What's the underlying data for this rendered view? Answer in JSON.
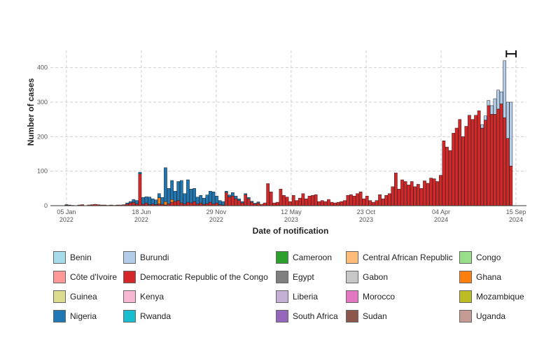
{
  "chart_data": {
    "type": "bar",
    "stacked": true,
    "xlabel": "Date of notification",
    "ylabel": "Number of cases",
    "ylim": [
      0,
      450
    ],
    "yticks": [
      0,
      100,
      200,
      300,
      400
    ],
    "x_tick_labels": [
      {
        "date": "2022-01-05",
        "line1": "05 Jan",
        "line2": "2022"
      },
      {
        "date": "2022-06-18",
        "line1": "18 Jun",
        "line2": "2022"
      },
      {
        "date": "2022-11-29",
        "line1": "29 Nov",
        "line2": "2022"
      },
      {
        "date": "2023-05-12",
        "line1": "12 May",
        "line2": "2023"
      },
      {
        "date": "2023-10-23",
        "line1": "23 Oct",
        "line2": "2023"
      },
      {
        "date": "2024-04-04",
        "line1": "04 Apr",
        "line2": "2024"
      },
      {
        "date": "2024-09-15",
        "line1": "15 Sep",
        "line2": "2024"
      }
    ],
    "xlim": [
      "2021-12-01",
      "2024-10-08"
    ],
    "grid": true,
    "reporting_delay_marker": {
      "start": "2024-08-25",
      "end": "2024-09-15",
      "y": 440
    },
    "legend_position": "bottom",
    "series": [
      {
        "name": "Benin",
        "color": "#a6dce9"
      },
      {
        "name": "Burundi",
        "color": "#b3cce8"
      },
      {
        "name": "Cameroon",
        "color": "#2ca02c"
      },
      {
        "name": "Central African Republic",
        "color": "#ffbb78"
      },
      {
        "name": "Congo",
        "color": "#98df8a"
      },
      {
        "name": "Côte d'Ivoire",
        "color": "#ff9896"
      },
      {
        "name": "Democratic Republic of the Congo",
        "color": "#d62728"
      },
      {
        "name": "Egypt",
        "color": "#7f7f7f"
      },
      {
        "name": "Gabon",
        "color": "#c7c7c7"
      },
      {
        "name": "Ghana",
        "color": "#ff7f0e"
      },
      {
        "name": "Guinea",
        "color": "#dbdb8d"
      },
      {
        "name": "Kenya",
        "color": "#f7b6d2"
      },
      {
        "name": "Liberia",
        "color": "#c5b0d5"
      },
      {
        "name": "Morocco",
        "color": "#e377c2"
      },
      {
        "name": "Mozambique",
        "color": "#bcbd22"
      },
      {
        "name": "Nigeria",
        "color": "#1f77b4"
      },
      {
        "name": "Rwanda",
        "color": "#17becf"
      },
      {
        "name": "South Africa",
        "color": "#9467bd"
      },
      {
        "name": "Sudan",
        "color": "#8c564b"
      },
      {
        "name": "Uganda",
        "color": "#c49c94"
      }
    ],
    "bars": [
      {
        "date": "2022-01-05",
        "Democratic Republic of the Congo": 2,
        "Nigeria": 1
      },
      {
        "date": "2022-01-12",
        "Democratic Republic of the Congo": 2
      },
      {
        "date": "2022-01-19",
        "Democratic Republic of the Congo": 1
      },
      {
        "date": "2022-02-02",
        "Democratic Republic of the Congo": 2
      },
      {
        "date": "2022-02-09",
        "Democratic Republic of the Congo": 3
      },
      {
        "date": "2022-02-23",
        "Democratic Republic of the Congo": 2
      },
      {
        "date": "2022-03-02",
        "Democratic Republic of the Congo": 3
      },
      {
        "date": "2022-03-09",
        "Democratic Republic of the Congo": 4
      },
      {
        "date": "2022-03-16",
        "Democratic Republic of the Congo": 3
      },
      {
        "date": "2022-03-23",
        "Democratic Republic of the Congo": 2
      },
      {
        "date": "2022-03-30",
        "Democratic Republic of the Congo": 2
      },
      {
        "date": "2022-04-06",
        "Democratic Republic of the Congo": 1
      },
      {
        "date": "2022-04-13",
        "Democratic Republic of the Congo": 2
      },
      {
        "date": "2022-04-20",
        "Democratic Republic of the Congo": 1
      },
      {
        "date": "2022-04-27",
        "Democratic Republic of the Congo": 2
      },
      {
        "date": "2022-05-04",
        "Democratic Republic of the Congo": 2
      },
      {
        "date": "2022-05-11",
        "Democratic Republic of the Congo": 3
      },
      {
        "date": "2022-05-18",
        "Democratic Republic of the Congo": 5,
        "Nigeria": 3
      },
      {
        "date": "2022-05-25",
        "Democratic Republic of the Congo": 8,
        "Nigeria": 4
      },
      {
        "date": "2022-06-01",
        "Democratic Republic of the Congo": 10,
        "Nigeria": 8
      },
      {
        "date": "2022-06-08",
        "Democratic Republic of the Congo": 5,
        "Nigeria": 10
      },
      {
        "date": "2022-06-15",
        "Democratic Republic of the Congo": 92,
        "Nigeria": 5
      },
      {
        "date": "2022-06-22",
        "Democratic Republic of the Congo": 4,
        "Nigeria": 20
      },
      {
        "date": "2022-06-29",
        "Democratic Republic of the Congo": 8,
        "Nigeria": 18
      },
      {
        "date": "2022-07-06",
        "Democratic Republic of the Congo": 3,
        "Nigeria": 22
      },
      {
        "date": "2022-07-13",
        "Democratic Republic of the Congo": 5,
        "Nigeria": 15
      },
      {
        "date": "2022-07-20",
        "Democratic Republic of the Congo": 3,
        "Nigeria": 14
      },
      {
        "date": "2022-07-27",
        "Democratic Republic of the Congo": 5,
        "Nigeria": 12,
        "Ghana": 18
      },
      {
        "date": "2022-08-03",
        "Democratic Republic of the Congo": 4,
        "Nigeria": 20
      },
      {
        "date": "2022-08-10",
        "Democratic Republic of the Congo": 2,
        "Nigeria": 98,
        "Ghana": 10
      },
      {
        "date": "2022-08-17",
        "Democratic Republic of the Congo": 5,
        "Nigeria": 45
      },
      {
        "date": "2022-08-24",
        "Democratic Republic of the Congo": 10,
        "Nigeria": 55,
        "Ghana": 8
      },
      {
        "date": "2022-08-31",
        "Democratic Republic of the Congo": 12,
        "Nigeria": 30
      },
      {
        "date": "2022-09-07",
        "Democratic Republic of the Congo": 15,
        "Nigeria": 55
      },
      {
        "date": "2022-09-14",
        "Democratic Republic of the Congo": 8,
        "Nigeria": 65
      },
      {
        "date": "2022-09-21",
        "Democratic Republic of the Congo": 5,
        "Nigeria": 30
      },
      {
        "date": "2022-09-28",
        "Democratic Republic of the Congo": 10,
        "Nigeria": 65
      },
      {
        "date": "2022-10-05",
        "Democratic Republic of the Congo": 8,
        "Nigeria": 40
      },
      {
        "date": "2022-10-12",
        "Democratic Republic of the Congo": 12,
        "Nigeria": 38
      },
      {
        "date": "2022-10-19",
        "Democratic Republic of the Congo": 5,
        "Nigeria": 20
      },
      {
        "date": "2022-10-26",
        "Democratic Republic of the Congo": 8,
        "Nigeria": 22
      },
      {
        "date": "2022-11-02",
        "Democratic Republic of the Congo": 4,
        "Nigeria": 18
      },
      {
        "date": "2022-11-09",
        "Democratic Republic of the Congo": 6,
        "Nigeria": 25
      },
      {
        "date": "2022-11-16",
        "Democratic Republic of the Congo": 10,
        "Nigeria": 32
      },
      {
        "date": "2022-11-23",
        "Democratic Republic of the Congo": 5,
        "Nigeria": 35
      },
      {
        "date": "2022-11-30",
        "Democratic Republic of the Congo": 8,
        "Nigeria": 20
      },
      {
        "date": "2022-12-07",
        "Democratic Republic of the Congo": 3,
        "Nigeria": 12
      },
      {
        "date": "2022-12-14",
        "Democratic Republic of the Congo": 2,
        "Nigeria": 10
      },
      {
        "date": "2022-12-21",
        "Democratic Republic of the Congo": 38,
        "Nigeria": 4
      },
      {
        "date": "2022-12-28",
        "Democratic Republic of the Congo": 25,
        "Nigeria": 6
      },
      {
        "date": "2023-01-04",
        "Democratic Republic of the Congo": 28,
        "Nigeria": 10
      },
      {
        "date": "2023-01-11",
        "Democratic Republic of the Congo": 20,
        "Nigeria": 8
      },
      {
        "date": "2023-01-18",
        "Democratic Republic of the Congo": 15,
        "Nigeria": 5
      },
      {
        "date": "2023-01-25",
        "Democratic Republic of the Congo": 8,
        "Nigeria": 4
      },
      {
        "date": "2023-02-01",
        "Democratic Republic of the Congo": 32,
        "Nigeria": 3
      },
      {
        "date": "2023-02-08",
        "Democratic Republic of the Congo": 20,
        "Nigeria": 4
      },
      {
        "date": "2023-02-15",
        "Democratic Republic of the Congo": 10,
        "Nigeria": 3
      },
      {
        "date": "2023-02-22",
        "Democratic Republic of the Congo": 5,
        "Nigeria": 2
      },
      {
        "date": "2023-03-01",
        "Democratic Republic of the Congo": 8,
        "Nigeria": 3
      },
      {
        "date": "2023-03-08",
        "Democratic Republic of the Congo": 4
      },
      {
        "date": "2023-03-15",
        "Democratic Republic of the Congo": 8
      },
      {
        "date": "2023-03-22",
        "Democratic Republic of the Congo": 64
      },
      {
        "date": "2023-03-29",
        "Democratic Republic of the Congo": 40
      },
      {
        "date": "2023-04-05",
        "Democratic Republic of the Congo": 8
      },
      {
        "date": "2023-04-12",
        "Democratic Republic of the Congo": 10
      },
      {
        "date": "2023-04-19",
        "Democratic Republic of the Congo": 48
      },
      {
        "date": "2023-04-26",
        "Democratic Republic of the Congo": 30
      },
      {
        "date": "2023-05-03",
        "Democratic Republic of the Congo": 25
      },
      {
        "date": "2023-05-10",
        "Democratic Republic of the Congo": 12
      },
      {
        "date": "2023-05-17",
        "Democratic Republic of the Congo": 30
      },
      {
        "date": "2023-05-24",
        "Democratic Republic of the Congo": 15
      },
      {
        "date": "2023-05-31",
        "Democratic Republic of the Congo": 22
      },
      {
        "date": "2023-06-07",
        "Democratic Republic of the Congo": 35
      },
      {
        "date": "2023-06-14",
        "Democratic Republic of the Congo": 20
      },
      {
        "date": "2023-06-21",
        "Democratic Republic of the Congo": 28
      },
      {
        "date": "2023-06-28",
        "Democratic Republic of the Congo": 30
      },
      {
        "date": "2023-07-05",
        "Democratic Republic of the Congo": 32
      },
      {
        "date": "2023-07-12",
        "Democratic Republic of the Congo": 12
      },
      {
        "date": "2023-07-19",
        "Democratic Republic of the Congo": 15
      },
      {
        "date": "2023-07-26",
        "Democratic Republic of the Congo": 12
      },
      {
        "date": "2023-08-02",
        "Democratic Republic of the Congo": 18
      },
      {
        "date": "2023-08-09",
        "Democratic Republic of the Congo": 10
      },
      {
        "date": "2023-08-16",
        "Democratic Republic of the Congo": 8
      },
      {
        "date": "2023-08-23",
        "Democratic Republic of the Congo": 10
      },
      {
        "date": "2023-08-30",
        "Democratic Republic of the Congo": 12
      },
      {
        "date": "2023-09-06",
        "Democratic Republic of the Congo": 15
      },
      {
        "date": "2023-09-13",
        "Democratic Republic of the Congo": 30
      },
      {
        "date": "2023-09-20",
        "Democratic Republic of the Congo": 32
      },
      {
        "date": "2023-09-27",
        "Democratic Republic of the Congo": 28
      },
      {
        "date": "2023-10-04",
        "Democratic Republic of the Congo": 35
      },
      {
        "date": "2023-10-11",
        "Democratic Republic of the Congo": 40
      },
      {
        "date": "2023-10-18",
        "Democratic Republic of the Congo": 20
      },
      {
        "date": "2023-10-25",
        "Democratic Republic of the Congo": 28
      },
      {
        "date": "2023-11-01",
        "Democratic Republic of the Congo": 15
      },
      {
        "date": "2023-11-08",
        "Democratic Republic of the Congo": 10
      },
      {
        "date": "2023-11-15",
        "Democratic Republic of the Congo": 15
      },
      {
        "date": "2023-11-22",
        "Democratic Republic of the Congo": 32
      },
      {
        "date": "2023-11-29",
        "Democratic Republic of the Congo": 20
      },
      {
        "date": "2023-12-06",
        "Democratic Republic of the Congo": 30
      },
      {
        "date": "2023-12-13",
        "Democratic Republic of the Congo": 35
      },
      {
        "date": "2023-12-20",
        "Democratic Republic of the Congo": 55
      },
      {
        "date": "2023-12-27",
        "Democratic Republic of the Congo": 95
      },
      {
        "date": "2024-01-03",
        "Democratic Republic of the Congo": 48
      },
      {
        "date": "2024-01-10",
        "Democratic Republic of the Congo": 75
      },
      {
        "date": "2024-01-17",
        "Democratic Republic of the Congo": 70
      },
      {
        "date": "2024-01-24",
        "Democratic Republic of the Congo": 60
      },
      {
        "date": "2024-01-31",
        "Democratic Republic of the Congo": 70
      },
      {
        "date": "2024-02-07",
        "Democratic Republic of the Congo": 55
      },
      {
        "date": "2024-02-14",
        "Democratic Republic of the Congo": 62
      },
      {
        "date": "2024-02-21",
        "Democratic Republic of the Congo": 50
      },
      {
        "date": "2024-02-28",
        "Democratic Republic of the Congo": 72
      },
      {
        "date": "2024-03-06",
        "Democratic Republic of the Congo": 65
      },
      {
        "date": "2024-03-13",
        "Democratic Republic of the Congo": 80
      },
      {
        "date": "2024-03-20",
        "Democratic Republic of the Congo": 78
      },
      {
        "date": "2024-03-27",
        "Democratic Republic of the Congo": 70
      },
      {
        "date": "2024-04-03",
        "Democratic Republic of the Congo": 88
      },
      {
        "date": "2024-04-10",
        "Democratic Republic of the Congo": 188
      },
      {
        "date": "2024-04-17",
        "Democratic Republic of the Congo": 170
      },
      {
        "date": "2024-04-24",
        "Democratic Republic of the Congo": 160
      },
      {
        "date": "2024-05-01",
        "Democratic Republic of the Congo": 210
      },
      {
        "date": "2024-05-08",
        "Democratic Republic of the Congo": 225
      },
      {
        "date": "2024-05-15",
        "Democratic Republic of the Congo": 250
      },
      {
        "date": "2024-05-22",
        "Democratic Republic of the Congo": 200
      },
      {
        "date": "2024-05-29",
        "Democratic Republic of the Congo": 230
      },
      {
        "date": "2024-06-05",
        "Democratic Republic of the Congo": 262
      },
      {
        "date": "2024-06-12",
        "Democratic Republic of the Congo": 250
      },
      {
        "date": "2024-06-19",
        "Democratic Republic of the Congo": 262
      },
      {
        "date": "2024-06-26",
        "Democratic Republic of the Congo": 275
      },
      {
        "date": "2024-07-03",
        "Democratic Republic of the Congo": 225,
        "Burundi": 10
      },
      {
        "date": "2024-07-10",
        "Democratic Republic of the Congo": 248,
        "Burundi": 12
      },
      {
        "date": "2024-07-17",
        "Democratic Republic of the Congo": 290,
        "Burundi": 15
      },
      {
        "date": "2024-07-24",
        "Democratic Republic of the Congo": 265,
        "Burundi": 25
      },
      {
        "date": "2024-07-31",
        "Democratic Republic of the Congo": 265,
        "Burundi": 45
      },
      {
        "date": "2024-08-07",
        "Democratic Republic of the Congo": 280,
        "Burundi": 55
      },
      {
        "date": "2024-08-14",
        "Democratic Republic of the Congo": 295,
        "Burundi": 35
      },
      {
        "date": "2024-08-21",
        "Democratic Republic of the Congo": 255,
        "Burundi": 165
      },
      {
        "date": "2024-08-28",
        "Democratic Republic of the Congo": 195,
        "Burundi": 105
      },
      {
        "date": "2024-09-04",
        "Democratic Republic of the Congo": 115,
        "Burundi": 185
      }
    ]
  },
  "legend": {
    "items": [
      {
        "label": "Benin",
        "color": "#a6dce9"
      },
      {
        "label": "Burundi",
        "color": "#b3cce8"
      },
      {
        "label": "Cameroon",
        "color": "#2ca02c"
      },
      {
        "label": "Central African Republic",
        "color": "#ffbb78"
      },
      {
        "label": "Congo",
        "color": "#98df8a"
      },
      {
        "label": "Côte d'Ivoire",
        "color": "#ff9896"
      },
      {
        "label": "Democratic Republic of the Congo",
        "color": "#d62728"
      },
      {
        "label": "Egypt",
        "color": "#7f7f7f"
      },
      {
        "label": "Gabon",
        "color": "#c7c7c7"
      },
      {
        "label": "Ghana",
        "color": "#ff7f0e"
      },
      {
        "label": "Guinea",
        "color": "#dbdb8d"
      },
      {
        "label": "Kenya",
        "color": "#f7b6d2"
      },
      {
        "label": "Liberia",
        "color": "#c5b0d5"
      },
      {
        "label": "Morocco",
        "color": "#e377c2"
      },
      {
        "label": "Mozambique",
        "color": "#bcbd22"
      },
      {
        "label": "Nigeria",
        "color": "#1f77b4"
      },
      {
        "label": "Rwanda",
        "color": "#17becf"
      },
      {
        "label": "South Africa",
        "color": "#9467bd"
      },
      {
        "label": "Sudan",
        "color": "#8c564b"
      },
      {
        "label": "Uganda",
        "color": "#c49c94"
      }
    ]
  }
}
